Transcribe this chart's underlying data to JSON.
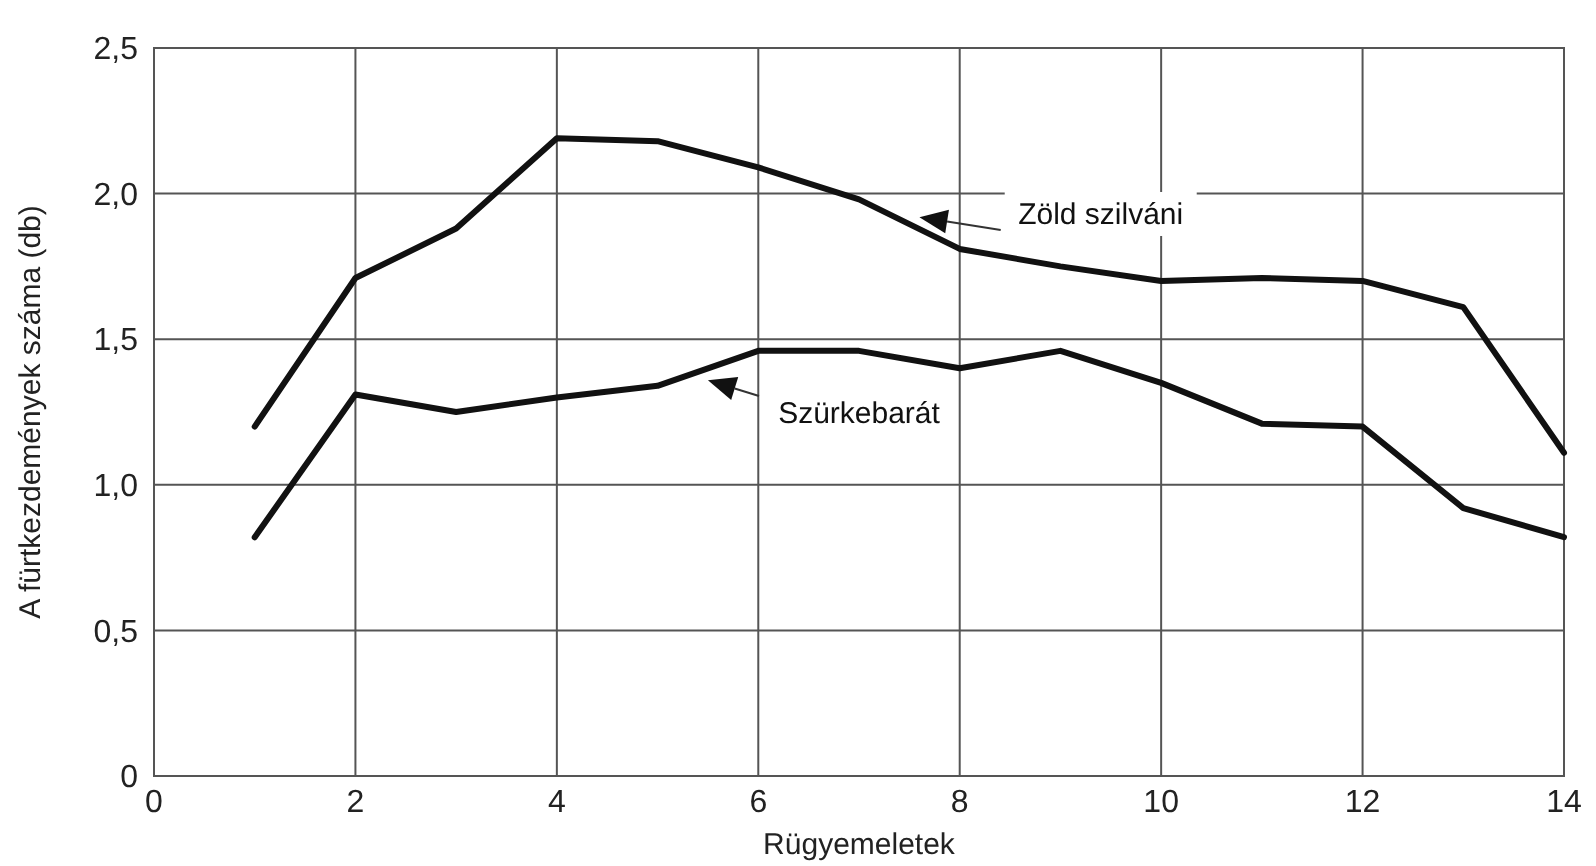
{
  "chart_data": {
    "type": "line",
    "xlabel": "Rügyemeletek",
    "ylabel": "A fürtkezdemények száma (db)",
    "x": [
      1,
      2,
      3,
      4,
      5,
      6,
      7,
      8,
      9,
      10,
      11,
      12,
      13,
      14
    ],
    "xlim": [
      0,
      14
    ],
    "xticks": [
      0,
      2,
      4,
      6,
      8,
      10,
      12,
      14
    ],
    "ylim": [
      0,
      2.5
    ],
    "yticks": [
      {
        "value": 0,
        "label": "0"
      },
      {
        "value": 0.5,
        "label": "0,5"
      },
      {
        "value": 1,
        "label": "1,0"
      },
      {
        "value": 1.5,
        "label": "1,5"
      },
      {
        "value": 2,
        "label": "2,0"
      },
      {
        "value": 2.5,
        "label": "2,5"
      }
    ],
    "grid": true,
    "marker": "none",
    "line_style": "solid",
    "series": [
      {
        "name": "Zöld szilváni",
        "color": "#111111",
        "values": [
          1.2,
          1.71,
          1.88,
          2.19,
          2.18,
          2.09,
          1.98,
          1.81,
          1.75,
          1.7,
          1.71,
          1.7,
          1.61,
          1.11
        ]
      },
      {
        "name": "Szürkebarát",
        "color": "#111111",
        "values": [
          0.82,
          1.31,
          1.25,
          1.3,
          1.34,
          1.46,
          1.46,
          1.4,
          1.46,
          1.35,
          1.21,
          1.2,
          0.92,
          0.82
        ]
      }
    ]
  }
}
